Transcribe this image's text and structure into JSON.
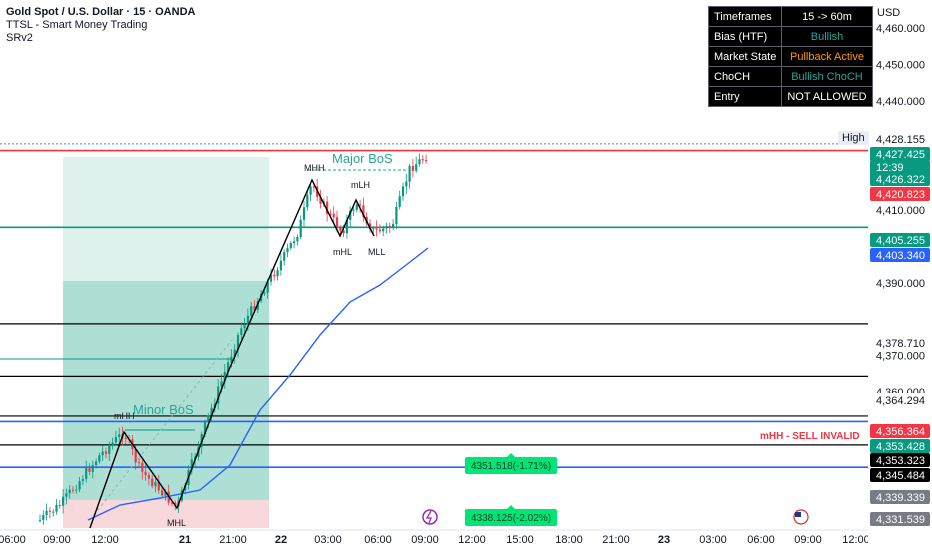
{
  "header": {
    "title": "Gold Spot / U.S. Dollar · 15 · OANDA",
    "indicator": "TTSL - Smart Money Trading",
    "indicator2": "SRv2",
    "currency": "USD"
  },
  "status_table": [
    {
      "key": "Timeframes",
      "value": "15 -> 60m",
      "color": "#ffffff"
    },
    {
      "key": "Bias (HTF)",
      "value": "Bullish",
      "color": "#26a69a"
    },
    {
      "key": "Market State",
      "value": "Pullback Active",
      "color": "#ff9800"
    },
    {
      "key": "ChoCH",
      "value": "Bullish ChoCH",
      "color": "#26a69a"
    },
    {
      "key": "Entry",
      "value": "NOT ALLOWED",
      "color": "#ffffff"
    }
  ],
  "high_label": "High",
  "chart_data": {
    "type": "candlestick",
    "ylim": [
      4327.5,
      4465
    ],
    "y_ticks": [
      "4,460.000",
      "4,450.000",
      "4,440.000",
      "4,410.000",
      "4,390.000",
      "4,370.000",
      "4,360.000"
    ],
    "x_ticks": [
      "06:00",
      "09:00",
      "12:00",
      "21",
      "21:00",
      "22",
      "03:00",
      "06:00",
      "09:00",
      "12:00",
      "15:00",
      "18:00",
      "21:00",
      "23",
      "03:00",
      "06:00",
      "09:00",
      "12:00"
    ],
    "price_tags": [
      {
        "value": "4,428.155",
        "bg": "#ffffff",
        "fg": "#131722"
      },
      {
        "value": "4,427.425",
        "bg": "#089981",
        "fg": "#ffffff"
      },
      {
        "value": "12:39",
        "bg": "#089981",
        "fg": "#ffffff"
      },
      {
        "value": "4,426.322",
        "bg": "#089981",
        "fg": "#ffffff"
      },
      {
        "value": "4,420.823",
        "bg": "#f23645",
        "fg": "#ffffff"
      },
      {
        "value": "4,405.255",
        "bg": "#089981",
        "fg": "#ffffff"
      },
      {
        "value": "4,403.340",
        "bg": "#2962ff",
        "fg": "#ffffff"
      },
      {
        "value": "4,378.710",
        "bg": "#ffffff",
        "fg": "#131722"
      },
      {
        "value": "4,364.294",
        "bg": "#ffffff",
        "fg": "#131722"
      },
      {
        "value": "4,356.364",
        "bg": "#f23645",
        "fg": "#ffffff"
      },
      {
        "value": "4,353.428",
        "bg": "#089981",
        "fg": "#ffffff"
      },
      {
        "value": "4,353.323",
        "bg": "#000000",
        "fg": "#ffffff"
      },
      {
        "value": "4,345.484",
        "bg": "#000000",
        "fg": "#ffffff"
      },
      {
        "value": "4,339.339",
        "bg": "#787b86",
        "fg": "#ffffff"
      },
      {
        "value": "4,331.539",
        "bg": "#787b86",
        "fg": "#ffffff"
      }
    ],
    "swing_labels": [
      "MHH",
      "mLH",
      "mHL",
      "MLL",
      "mHH",
      "MHL"
    ],
    "annotations": [
      "Major BoS",
      "Minor BoS",
      "mHH - SELL INVALID"
    ],
    "badges": [
      "4351.518(-1.71%)",
      "4338.125(-2.02%)"
    ],
    "colors": {
      "up": "#089981",
      "down": "#f23645",
      "ma": "#2962ff",
      "zone": "#26a69a"
    }
  }
}
